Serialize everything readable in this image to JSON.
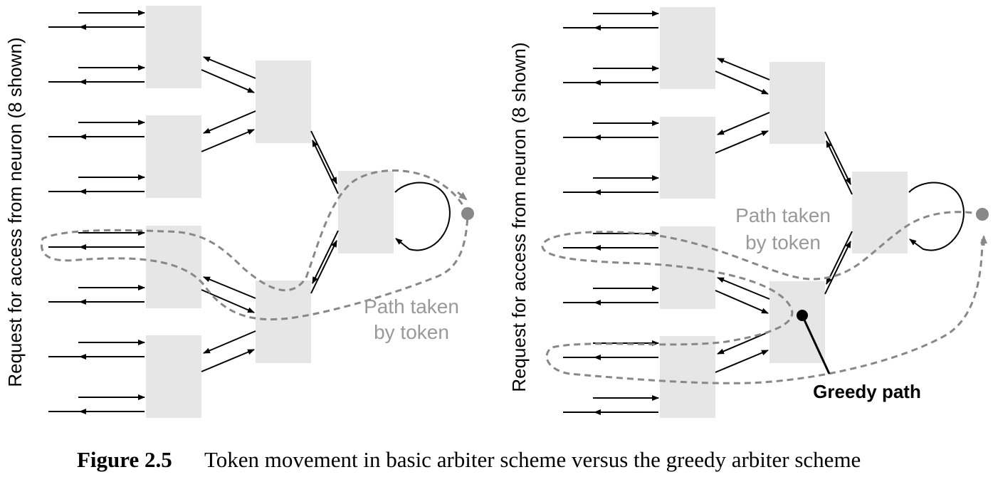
{
  "colors": {
    "box": "#e6e6e6",
    "line": "#000000",
    "path": "#888888",
    "path_label": "#999999",
    "greedy": "#000000"
  },
  "left_panel": {
    "ylabel": "Request for access from neuron (8 shown)",
    "path_label_line1": "Path taken",
    "path_label_line2": "by token"
  },
  "right_panel": {
    "ylabel": "Request for access from neuron (8 shown)",
    "path_label_line1": "Path taken",
    "path_label_line2": "by token",
    "greedy_label": "Greedy path"
  },
  "caption": {
    "number": "Figure 2.5",
    "text": "Token movement in basic arbiter scheme versus the greedy arbiter scheme"
  }
}
